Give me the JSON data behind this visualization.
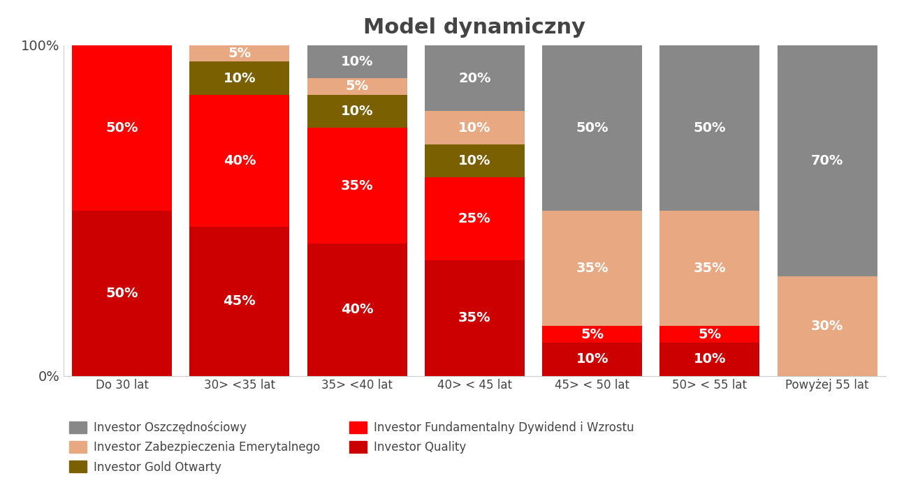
{
  "title": "Model dynamiczny",
  "categories": [
    "Do 30 lat",
    "30> <35 lat",
    "35> <40 lat",
    "40> < 45 lat",
    "45> < 50 lat",
    "50> < 55 lat",
    "Powyżej 55 lat"
  ],
  "series": [
    {
      "name": "Investor Quality",
      "color": "#cc0000",
      "values": [
        50,
        45,
        40,
        35,
        10,
        10,
        0
      ]
    },
    {
      "name": "Investor Fundamentalny Dywidend i Wzrostu",
      "color": "#ff0000",
      "values": [
        50,
        40,
        35,
        25,
        5,
        5,
        0
      ]
    },
    {
      "name": "Investor Gold Otwarty",
      "color": "#7a6000",
      "values": [
        0,
        10,
        10,
        10,
        0,
        0,
        0
      ]
    },
    {
      "name": "Investor Zabezpieczenia Emerytalnego",
      "color": "#e8a882",
      "values": [
        0,
        5,
        5,
        10,
        35,
        35,
        30
      ]
    },
    {
      "name": "Investor Oszczędnościowy",
      "color": "#888888",
      "values": [
        0,
        0,
        10,
        20,
        50,
        50,
        70
      ]
    }
  ],
  "background_color": "#ffffff",
  "plot_background_color": "#ffffff",
  "text_color": "#444444",
  "bar_label_color": "#ffffff",
  "title_color": "#444444",
  "ylim": [
    0,
    100
  ],
  "title_fontsize": 22,
  "label_fontsize": 14,
  "legend_fontsize": 12,
  "bar_width": 0.85,
  "legend_order": [
    4,
    3,
    2,
    1,
    0
  ]
}
